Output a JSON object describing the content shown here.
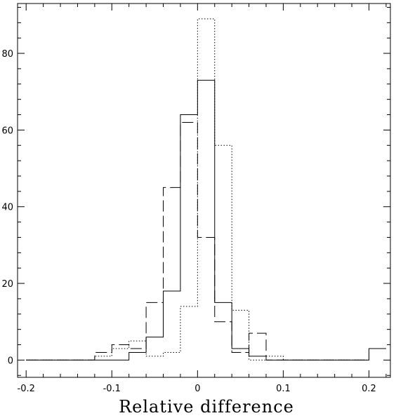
{
  "chart_data": {
    "type": "histogram-step",
    "title": "",
    "xlabel": "Relative difference",
    "ylabel": "",
    "xlim": [
      -0.21,
      0.225
    ],
    "ylim": [
      -4.5,
      93
    ],
    "grid": false,
    "legend": "none",
    "x_ticks": [
      {
        "value": -0.2,
        "label": "-0.2"
      },
      {
        "value": -0.1,
        "label": "-0.1"
      },
      {
        "value": 0,
        "label": "0"
      },
      {
        "value": 0.1,
        "label": "0.1"
      },
      {
        "value": 0.2,
        "label": "0.2"
      }
    ],
    "y_ticks": [
      {
        "value": 0,
        "label": "0"
      },
      {
        "value": 20,
        "label": "20"
      },
      {
        "value": 40,
        "label": "40"
      },
      {
        "value": 60,
        "label": "60"
      },
      {
        "value": 80,
        "label": "80"
      }
    ],
    "bin_edges": [
      -0.2,
      -0.18,
      -0.16,
      -0.14,
      -0.12,
      -0.1,
      -0.08,
      -0.06,
      -0.04,
      -0.02,
      0,
      0.02,
      0.04,
      0.06,
      0.08,
      0.1,
      0.12,
      0.14,
      0.16,
      0.18,
      0.2,
      0.22
    ],
    "series": [
      {
        "style": "solid",
        "counts": [
          0,
          0,
          0,
          0,
          0,
          0,
          2,
          6,
          18,
          64,
          73,
          15,
          3,
          1,
          0,
          0,
          0,
          0,
          0,
          0,
          3
        ]
      },
      {
        "style": "dashed",
        "counts": [
          0,
          0,
          0,
          0,
          2,
          4,
          3,
          15,
          45,
          62,
          32,
          10,
          2,
          7,
          0,
          0,
          0,
          0,
          0,
          0,
          3
        ]
      },
      {
        "style": "dotted",
        "counts": [
          0,
          0,
          0,
          0,
          1,
          3,
          5,
          1,
          2,
          14,
          89,
          56,
          13,
          0,
          1,
          0,
          0,
          0,
          0,
          0,
          3
        ]
      }
    ]
  }
}
